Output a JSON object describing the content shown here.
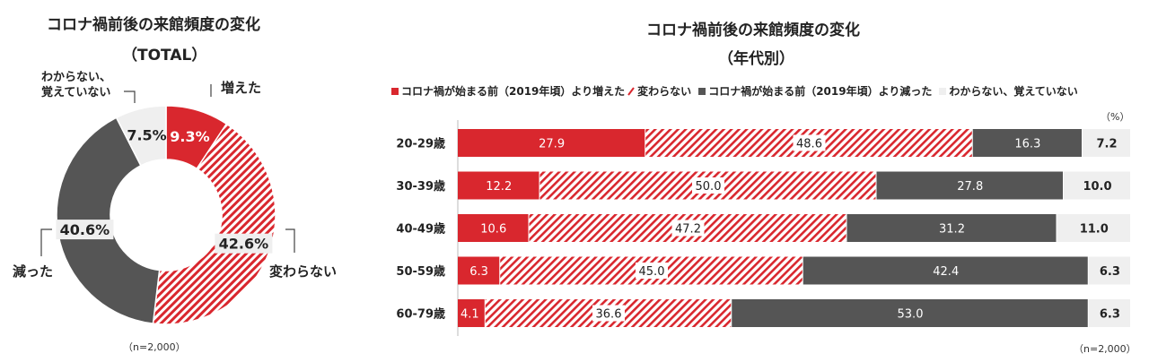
{
  "left": {
    "title": "コロナ禍前後の来館頻度の変化",
    "subtitle": "（TOTAL）",
    "note": "（n=2,000）",
    "labels": {
      "increased": "増えた",
      "unchanged": "変わらない",
      "decreased": "減った",
      "unknown_line1": "わからない、",
      "unknown_line2": "覚えていない"
    }
  },
  "right": {
    "title": "コロナ禍前後の来館頻度の変化",
    "subtitle": "（年代別）",
    "unit": "（%）",
    "note": "（n=2,000）",
    "legend": [
      "コロナ禍が始まる前（2019年頃）より増えた",
      "変わらない",
      "コロナ禍が始まる前（2019年頃）より減った",
      "わからない、覚えていない"
    ]
  },
  "colors": {
    "increased": "#d9272e",
    "unchanged_stripe": "#d9272e",
    "decreased": "#555555",
    "unknown": "#efefef"
  },
  "chart_data": [
    {
      "type": "pie",
      "title": "コロナ禍前後の来館頻度の変化（TOTAL）",
      "labels": [
        "増えた",
        "変わらない",
        "減った",
        "わからない、覚えていない"
      ],
      "values": [
        9.3,
        42.6,
        40.6,
        7.5
      ],
      "value_labels": [
        "9.3%",
        "42.6%",
        "40.6%",
        "7.5%"
      ]
    },
    {
      "type": "bar",
      "stacked": true,
      "orientation": "horizontal",
      "title": "コロナ禍前後の来館頻度の変化（年代別）",
      "categories": [
        "20-29歳",
        "30-39歳",
        "40-49歳",
        "50-59歳",
        "60-79歳"
      ],
      "series": [
        {
          "name": "コロナ禍が始まる前（2019年頃）より増えた",
          "values": [
            27.9,
            12.2,
            10.6,
            6.3,
            4.1
          ],
          "labels": [
            "27.9",
            "12.2",
            "10.6",
            "6.3",
            "4.1"
          ]
        },
        {
          "name": "変わらない",
          "values": [
            48.6,
            50.0,
            47.2,
            45.0,
            36.6
          ],
          "labels": [
            "48.6",
            "50.0",
            "47.2",
            "45.0",
            "36.6"
          ]
        },
        {
          "name": "コロナ禍が始まる前（2019年頃）より減った",
          "values": [
            16.3,
            27.8,
            31.2,
            42.4,
            53.0
          ],
          "labels": [
            "16.3",
            "27.8",
            "31.2",
            "42.4",
            "53.0"
          ]
        },
        {
          "name": "わからない、覚えていない",
          "values": [
            7.2,
            10.0,
            11.0,
            6.3,
            6.3
          ],
          "labels": [
            "7.2",
            "10.0",
            "11.0",
            "6.3",
            "6.3"
          ]
        }
      ],
      "xlim": [
        0,
        100
      ],
      "xlabel": "",
      "ylabel": ""
    }
  ]
}
